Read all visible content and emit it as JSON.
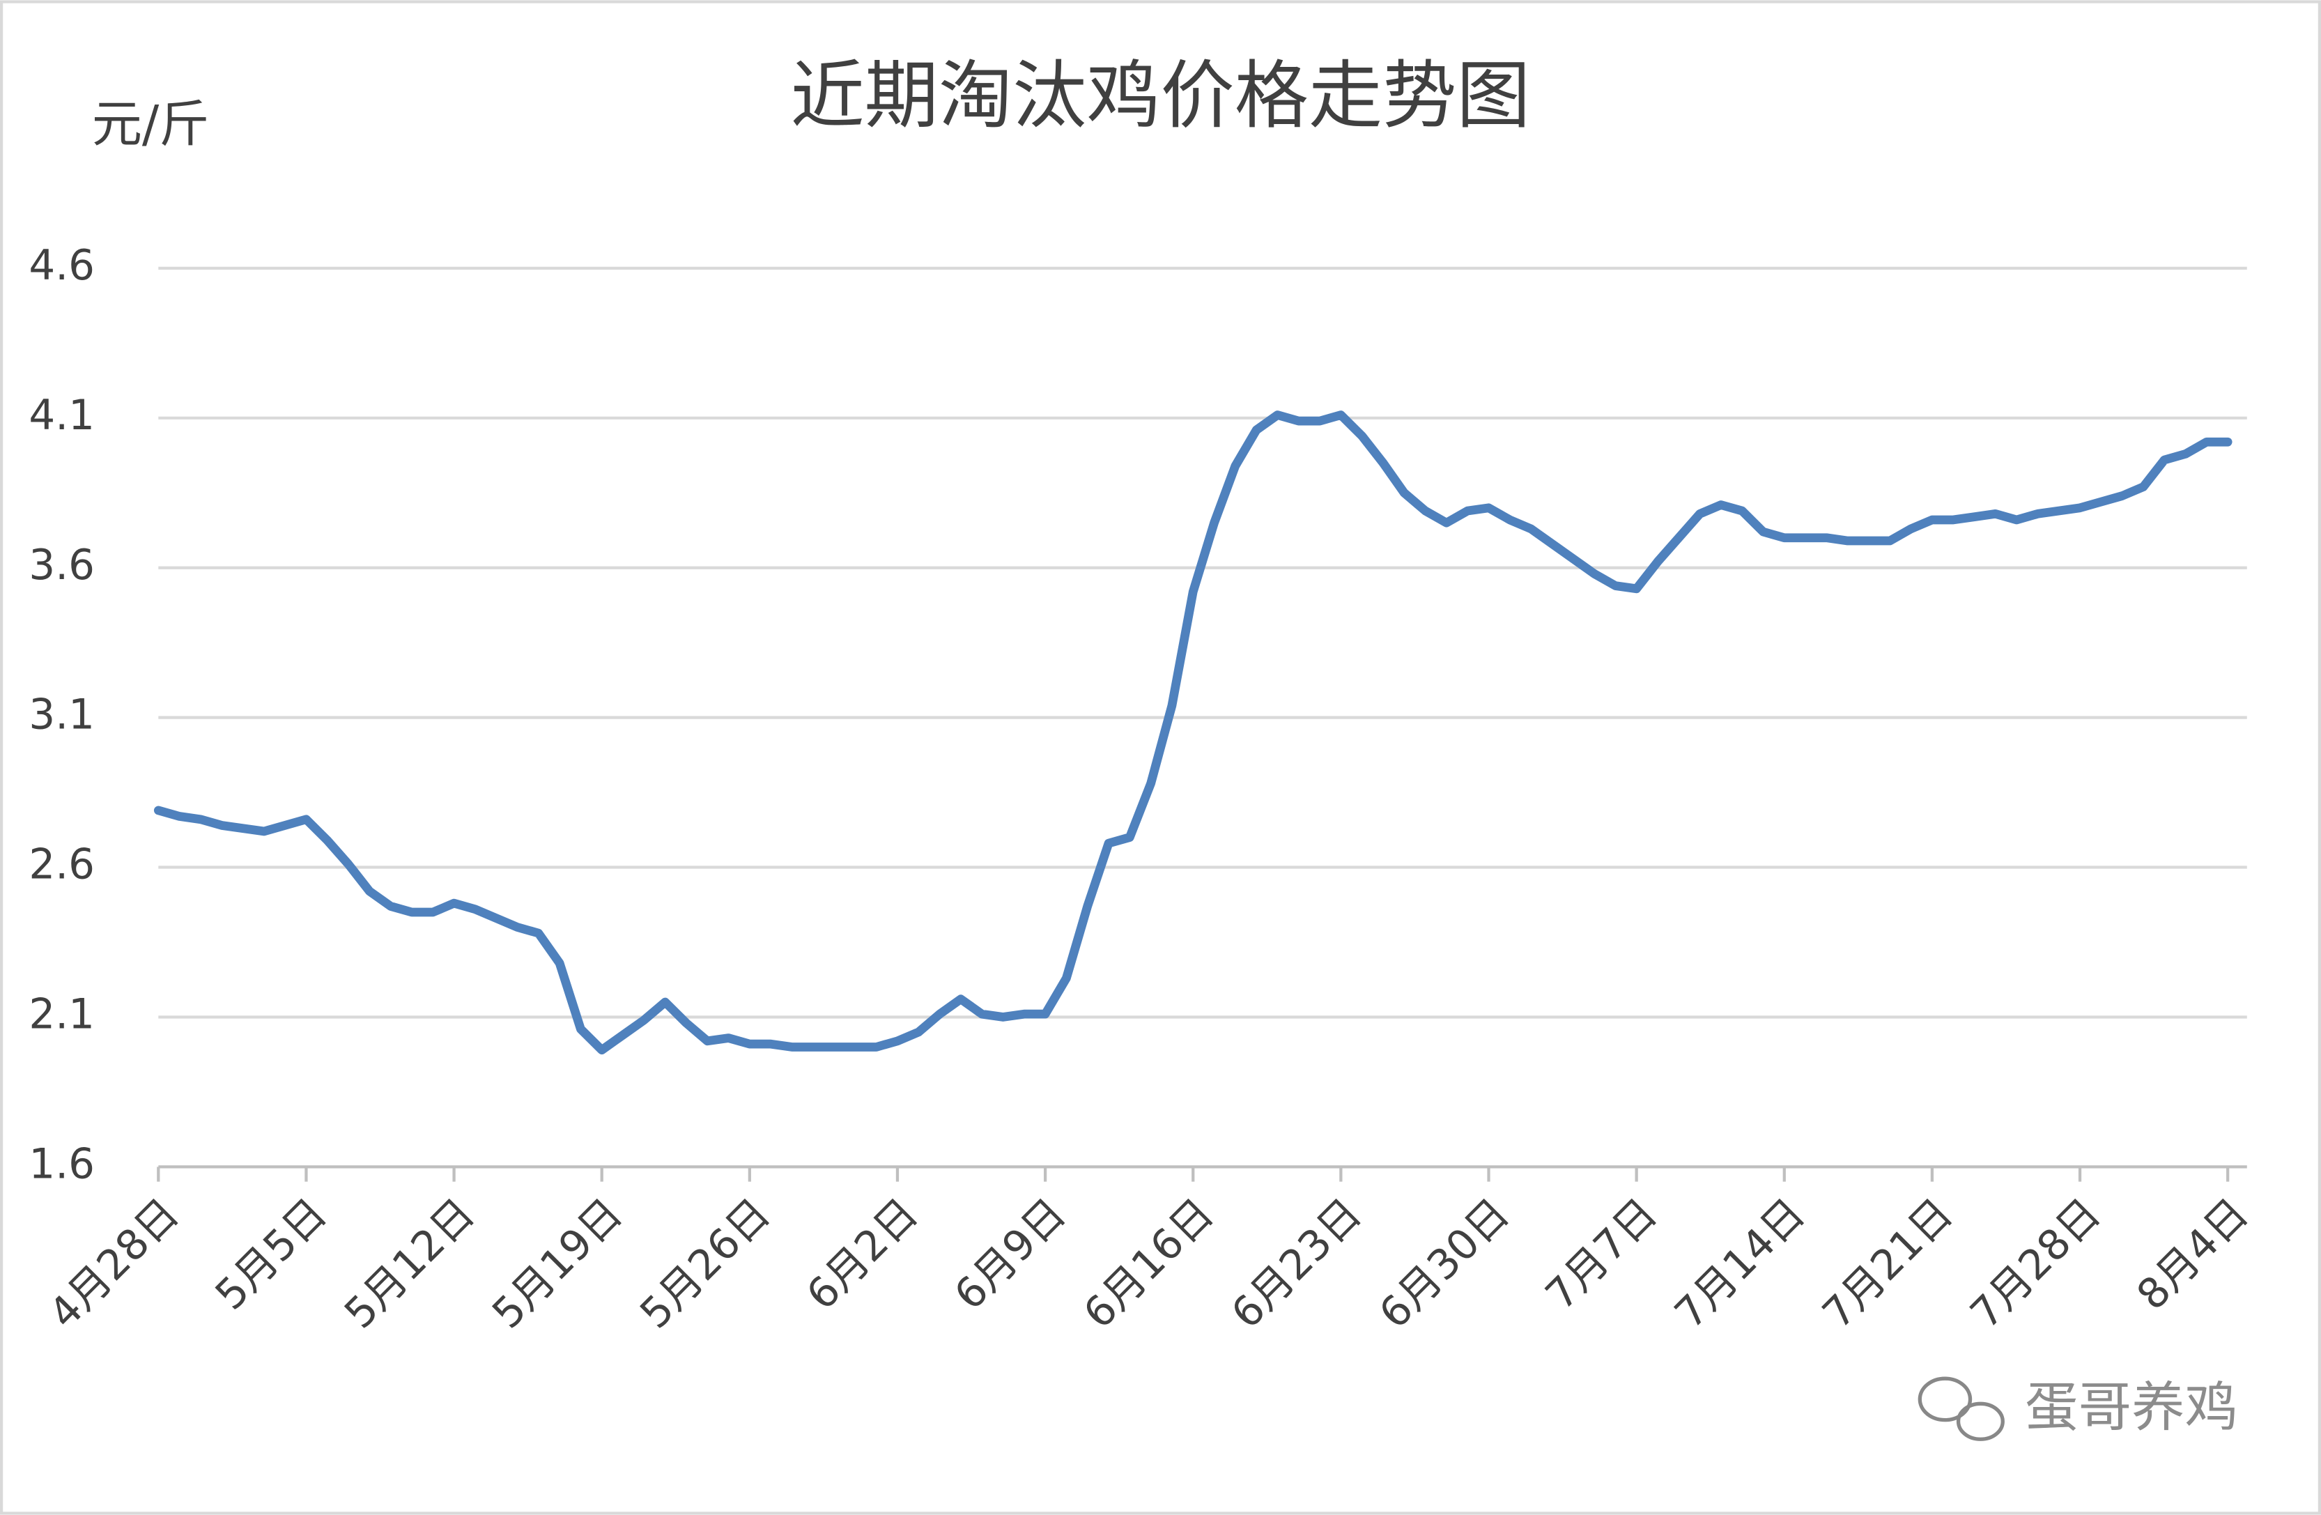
{
  "chart_data": {
    "type": "line",
    "title": "近期淘汰鸡价格走势图",
    "y_label": "元/斤",
    "watermark": "蛋哥养鸡",
    "color": "#4f81bd",
    "grid": true,
    "ylim": [
      1.6,
      4.6
    ],
    "yticks": [
      1.6,
      2.1,
      2.6,
      3.1,
      3.6,
      4.1,
      4.6
    ],
    "categories": [
      "4月28日",
      null,
      null,
      null,
      null,
      null,
      null,
      "5月5日",
      null,
      null,
      null,
      null,
      null,
      null,
      "5月12日",
      null,
      null,
      null,
      null,
      null,
      null,
      "5月19日",
      null,
      null,
      null,
      null,
      null,
      null,
      "5月26日",
      null,
      null,
      null,
      null,
      null,
      null,
      "6月2日",
      null,
      null,
      null,
      null,
      null,
      null,
      "6月9日",
      null,
      null,
      null,
      null,
      null,
      null,
      "6月16日",
      null,
      null,
      null,
      null,
      null,
      null,
      "6月23日",
      null,
      null,
      null,
      null,
      null,
      null,
      "6月30日",
      null,
      null,
      null,
      null,
      null,
      null,
      "7月7日",
      null,
      null,
      null,
      null,
      null,
      null,
      "7月14日",
      null,
      null,
      null,
      null,
      null,
      null,
      "7月21日",
      null,
      null,
      null,
      null,
      null,
      null,
      "7月28日",
      null,
      null,
      null,
      null,
      null,
      null,
      "8月4日"
    ],
    "values": [
      2.79,
      2.77,
      2.76,
      2.74,
      2.73,
      2.72,
      2.74,
      2.76,
      2.69,
      2.61,
      2.52,
      2.47,
      2.45,
      2.45,
      2.48,
      2.46,
      2.43,
      2.4,
      2.38,
      2.28,
      2.06,
      1.99,
      2.04,
      2.09,
      2.15,
      2.08,
      2.02,
      2.03,
      2.01,
      2.01,
      2.0,
      2.0,
      2.0,
      2.0,
      2.0,
      2.02,
      2.05,
      2.11,
      2.16,
      2.11,
      2.1,
      2.11,
      2.11,
      2.23,
      2.47,
      2.68,
      2.7,
      2.88,
      3.14,
      3.52,
      3.75,
      3.94,
      4.06,
      4.11,
      4.09,
      4.09,
      4.11,
      4.04,
      3.95,
      3.85,
      3.79,
      3.75,
      3.79,
      3.8,
      3.76,
      3.73,
      3.68,
      3.63,
      3.58,
      3.54,
      3.53,
      3.62,
      3.7,
      3.78,
      3.81,
      3.79,
      3.72,
      3.7,
      3.7,
      3.7,
      3.69,
      3.69,
      3.69,
      3.73,
      3.76,
      3.76,
      3.77,
      3.78,
      3.76,
      3.78,
      3.79,
      3.8,
      3.82,
      3.84,
      3.87,
      3.96,
      3.98,
      4.02,
      4.02
    ]
  }
}
